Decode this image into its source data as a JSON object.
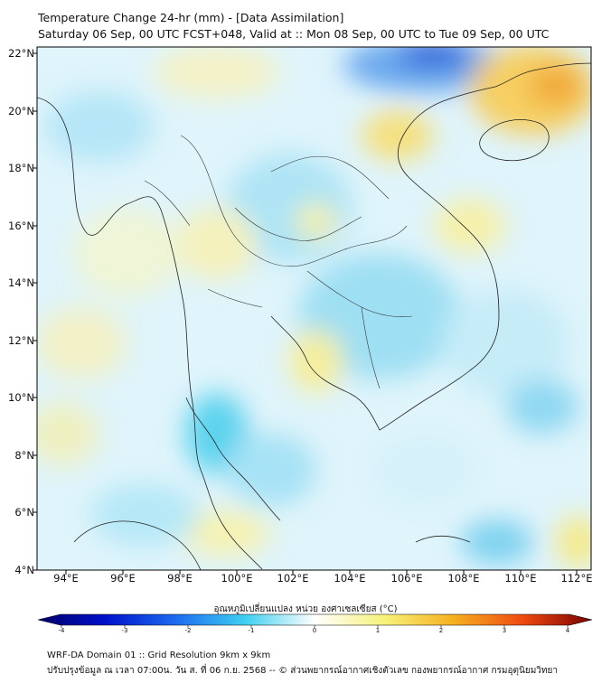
{
  "header": {
    "title": "Temperature Change 24-hr (mm) - [Data Assimilation]",
    "subtitle": "Saturday 06 Sep, 00 UTC FCST+048, Valid at :: Mon 08 Sep, 00 UTC to Tue 09 Sep, 00 UTC"
  },
  "map": {
    "lat_labels": [
      "22°N",
      "20°N",
      "18°N",
      "16°N",
      "14°N",
      "12°N",
      "10°N",
      "8°N",
      "6°N",
      "4°N"
    ],
    "lon_labels": [
      "94°E",
      "96°E",
      "98°E",
      "100°E",
      "102°E",
      "104°E",
      "106°E",
      "108°E",
      "110°E",
      "112°E"
    ],
    "lat_range": [
      4,
      22.2
    ],
    "lon_range": [
      93,
      112.5
    ]
  },
  "colorbar": {
    "title": "อุณหภูมิเปลี่ยนแปลง หน่วย องศาเซลเซียส (°C)",
    "ticks": [
      "-4",
      "-3",
      "-2",
      "-1",
      "0",
      "1",
      "2",
      "3",
      "4"
    ],
    "range": [
      -4,
      4
    ]
  },
  "footer": {
    "line1": "WRF-DA Domain 01 :: Grid Resolution 9km x 9km",
    "line2": "ปรับปรุงข้อมูล ณ เวลา 07:00น. วัน ส. ที่ 06 ก.ย. 2568 -- © ส่วนพยากรณ์อากาศเชิงตัวเลข กองพยากรณ์อากาศ กรมอุตุนิยมวิทยา"
  }
}
